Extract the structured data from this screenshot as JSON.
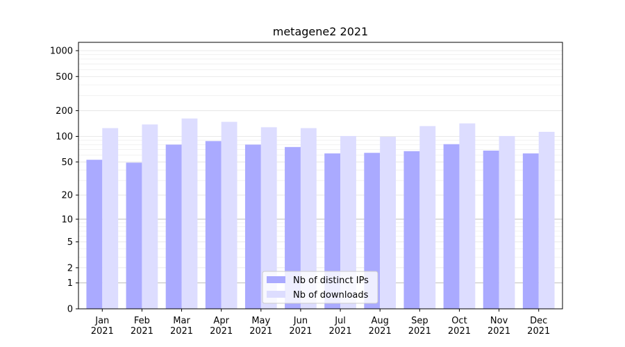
{
  "chart_data": {
    "type": "bar",
    "title": "metagene2 2021",
    "xlabel": "",
    "ylabel": "",
    "categories": [
      "Jan\n2021",
      "Feb\n2021",
      "Mar\n2021",
      "Apr\n2021",
      "May\n2021",
      "Jun\n2021",
      "Jul\n2021",
      "Aug\n2021",
      "Sep\n2021",
      "Oct\n2021",
      "Nov\n2021",
      "Dec\n2021"
    ],
    "category_lines": [
      [
        "Jan",
        "2021"
      ],
      [
        "Feb",
        "2021"
      ],
      [
        "Mar",
        "2021"
      ],
      [
        "Apr",
        "2021"
      ],
      [
        "May",
        "2021"
      ],
      [
        "Jun",
        "2021"
      ],
      [
        "Jul",
        "2021"
      ],
      [
        "Aug",
        "2021"
      ],
      [
        "Sep",
        "2021"
      ],
      [
        "Oct",
        "2021"
      ],
      [
        "Nov",
        "2021"
      ],
      [
        "Dec",
        "2021"
      ]
    ],
    "series": [
      {
        "name": "Nb of distinct IPs",
        "color": "#aaaaff",
        "values": [
          53,
          49,
          80,
          88,
          80,
          75,
          63,
          64,
          67,
          81,
          68,
          63
        ]
      },
      {
        "name": "Nb of downloads",
        "color": "#ddddff",
        "values": [
          125,
          138,
          162,
          148,
          128,
          125,
          101,
          99,
          132,
          142,
          101,
          113
        ]
      }
    ],
    "y_scale": "log1p",
    "ylim": [
      0,
      1250
    ],
    "yticks": [
      0,
      1,
      2,
      5,
      10,
      20,
      50,
      100,
      200,
      500,
      1000
    ],
    "ytick_labels": [
      "0",
      "1",
      "2",
      "5",
      "10",
      "20",
      "50",
      "100",
      "200",
      "500",
      "1000"
    ],
    "grid": true,
    "legend": "bottom-center"
  }
}
